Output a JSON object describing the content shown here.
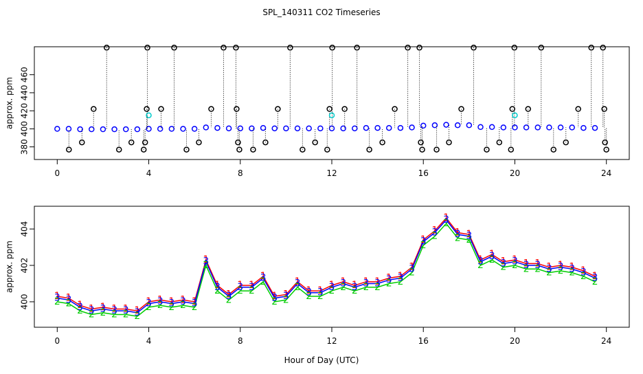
{
  "chart_data": [
    {
      "type": "scatter",
      "title": "SPL_140311  CO2 Timeseries",
      "y_label": "approx. ppm",
      "xlim": [
        -1,
        25
      ],
      "xticks": [
        0,
        4,
        8,
        12,
        16,
        20,
        24
      ],
      "ylim": [
        366,
        491
      ],
      "yticks": [
        380,
        400,
        420,
        440,
        460
      ],
      "series": [
        {
          "color": "#0000ff",
          "x": [
            0,
            0.5,
            1,
            1.5,
            2,
            2.5,
            3,
            3.5,
            4,
            4.5,
            5,
            5.5,
            6,
            6.5,
            7,
            7.5,
            8,
            8.5,
            9,
            9.5,
            10,
            10.5,
            11,
            11.5,
            12,
            12.5,
            13,
            13.5,
            14,
            14.5,
            15,
            15.5,
            16,
            16.5,
            17,
            17.5,
            18,
            18.5,
            19,
            19.5,
            20,
            20.5,
            21,
            21.5,
            22,
            22.5,
            23,
            23.5
          ],
          "values": [
            400,
            400,
            399.5,
            399.5,
            399.5,
            399.5,
            399.5,
            399.5,
            400,
            400,
            400,
            400,
            400,
            401.5,
            401,
            400.5,
            400.5,
            400.5,
            401,
            400.5,
            400.5,
            400.5,
            400.5,
            400.5,
            400.5,
            400.5,
            400.5,
            401,
            401,
            401,
            401,
            401.5,
            403.5,
            404,
            404.5,
            404,
            404,
            402,
            402,
            401.5,
            401.5,
            401.5,
            401.5,
            401.5,
            401.5,
            401.5,
            401,
            401
          ]
        },
        {
          "color": "#000000",
          "stems": true,
          "x": [
            0.51,
            1.08,
            1.59,
            2.16,
            2.7,
            3.24,
            3.78,
            3.84,
            3.91,
            3.94,
            4.54,
            5.11,
            5.65,
            6.19,
            6.73,
            7.27,
            7.81,
            7.84,
            7.9,
            7.96,
            8.56,
            9.1,
            9.64,
            10.18,
            10.72,
            11.27,
            11.8,
            11.9,
            12.02,
            12.56,
            13.1,
            13.64,
            14.21,
            14.75,
            15.32,
            15.83,
            15.89,
            15.95,
            16.58,
            17.12,
            17.66,
            18.2,
            18.77,
            19.32,
            19.83,
            19.89,
            19.98,
            20.58,
            21.15,
            21.69,
            22.23,
            22.77,
            23.34,
            23.85,
            23.91,
            23.94,
            24
          ],
          "values": [
            377,
            385,
            422,
            490,
            377,
            385,
            377,
            385,
            422,
            490,
            422,
            490,
            377,
            385,
            422,
            490,
            490,
            422,
            385,
            377,
            377,
            385,
            422,
            490,
            377,
            385,
            377,
            422,
            490,
            422,
            490,
            377,
            385,
            422,
            490,
            490,
            385,
            377,
            377,
            385,
            422,
            490,
            377,
            385,
            377,
            422,
            490,
            422,
            490,
            377,
            385,
            422,
            490,
            490,
            422,
            385,
            377
          ]
        },
        {
          "color": "#00cccc",
          "x": [
            4,
            12,
            20
          ],
          "values": [
            415,
            415,
            415
          ]
        }
      ]
    },
    {
      "type": "line",
      "y_label": "approx. ppm",
      "x_label": "Hour of Day (UTC)",
      "xlim": [
        -1,
        25
      ],
      "xticks": [
        0,
        4,
        8,
        12,
        16,
        20,
        24
      ],
      "ylim": [
        398.6,
        405.25
      ],
      "yticks": [
        400,
        402,
        404
      ],
      "x": [
        0,
        0.5,
        1,
        1.5,
        2,
        2.5,
        3,
        3.5,
        4,
        4.5,
        5,
        5.5,
        6,
        6.5,
        7,
        7.5,
        8,
        8.5,
        9,
        9.5,
        10,
        10.5,
        11,
        11.5,
        12,
        12.5,
        13,
        13.5,
        14,
        14.5,
        15,
        15.5,
        16,
        16.5,
        17,
        17.5,
        18,
        18.5,
        19,
        19.5,
        20,
        20.5,
        21,
        21.5,
        22,
        22.5,
        23,
        23.5
      ],
      "series": [
        {
          "marker": "1",
          "color": "#ff0000",
          "values": [
            400.3,
            400.2,
            399.8,
            399.6,
            399.7,
            399.6,
            399.6,
            399.5,
            400,
            400.1,
            400,
            400.1,
            400,
            402.3,
            400.9,
            400.4,
            400.9,
            400.9,
            401.4,
            400.3,
            400.4,
            401.1,
            400.6,
            400.6,
            400.9,
            401.1,
            400.9,
            401.1,
            401.1,
            401.3,
            401.4,
            401.9,
            403.4,
            403.9,
            404.6,
            403.8,
            403.7,
            402.3,
            402.6,
            402.2,
            402.3,
            402.1,
            402.1,
            401.9,
            402,
            401.9,
            401.7,
            401.4
          ]
        },
        {
          "marker": "2",
          "color": "#00cc00",
          "values": [
            400,
            399.9,
            399.5,
            399.3,
            399.4,
            399.3,
            399.3,
            399.2,
            399.7,
            399.8,
            399.7,
            399.8,
            399.7,
            402,
            400.6,
            400.1,
            400.6,
            400.6,
            401.1,
            400,
            400.1,
            400.8,
            400.3,
            400.3,
            400.6,
            400.8,
            400.6,
            400.8,
            400.8,
            401,
            401.1,
            401.6,
            403.1,
            403.6,
            404.3,
            403.5,
            403.4,
            402,
            402.3,
            401.9,
            402,
            401.8,
            401.8,
            401.6,
            401.7,
            401.6,
            401.4,
            401.1
          ]
        },
        {
          "marker": "3",
          "color": "#0000ff",
          "values": [
            400.2,
            400.1,
            399.7,
            399.5,
            399.6,
            399.5,
            399.5,
            399.4,
            399.9,
            400,
            399.9,
            400,
            399.9,
            402.2,
            400.8,
            400.3,
            400.8,
            400.8,
            401.3,
            400.2,
            400.3,
            401,
            400.5,
            400.5,
            400.8,
            401,
            400.8,
            401,
            401,
            401.2,
            401.3,
            401.8,
            403.3,
            403.8,
            404.5,
            403.7,
            403.6,
            402.2,
            402.5,
            402.1,
            402.2,
            402,
            402,
            401.8,
            401.9,
            401.8,
            401.6,
            401.3
          ]
        }
      ]
    }
  ]
}
